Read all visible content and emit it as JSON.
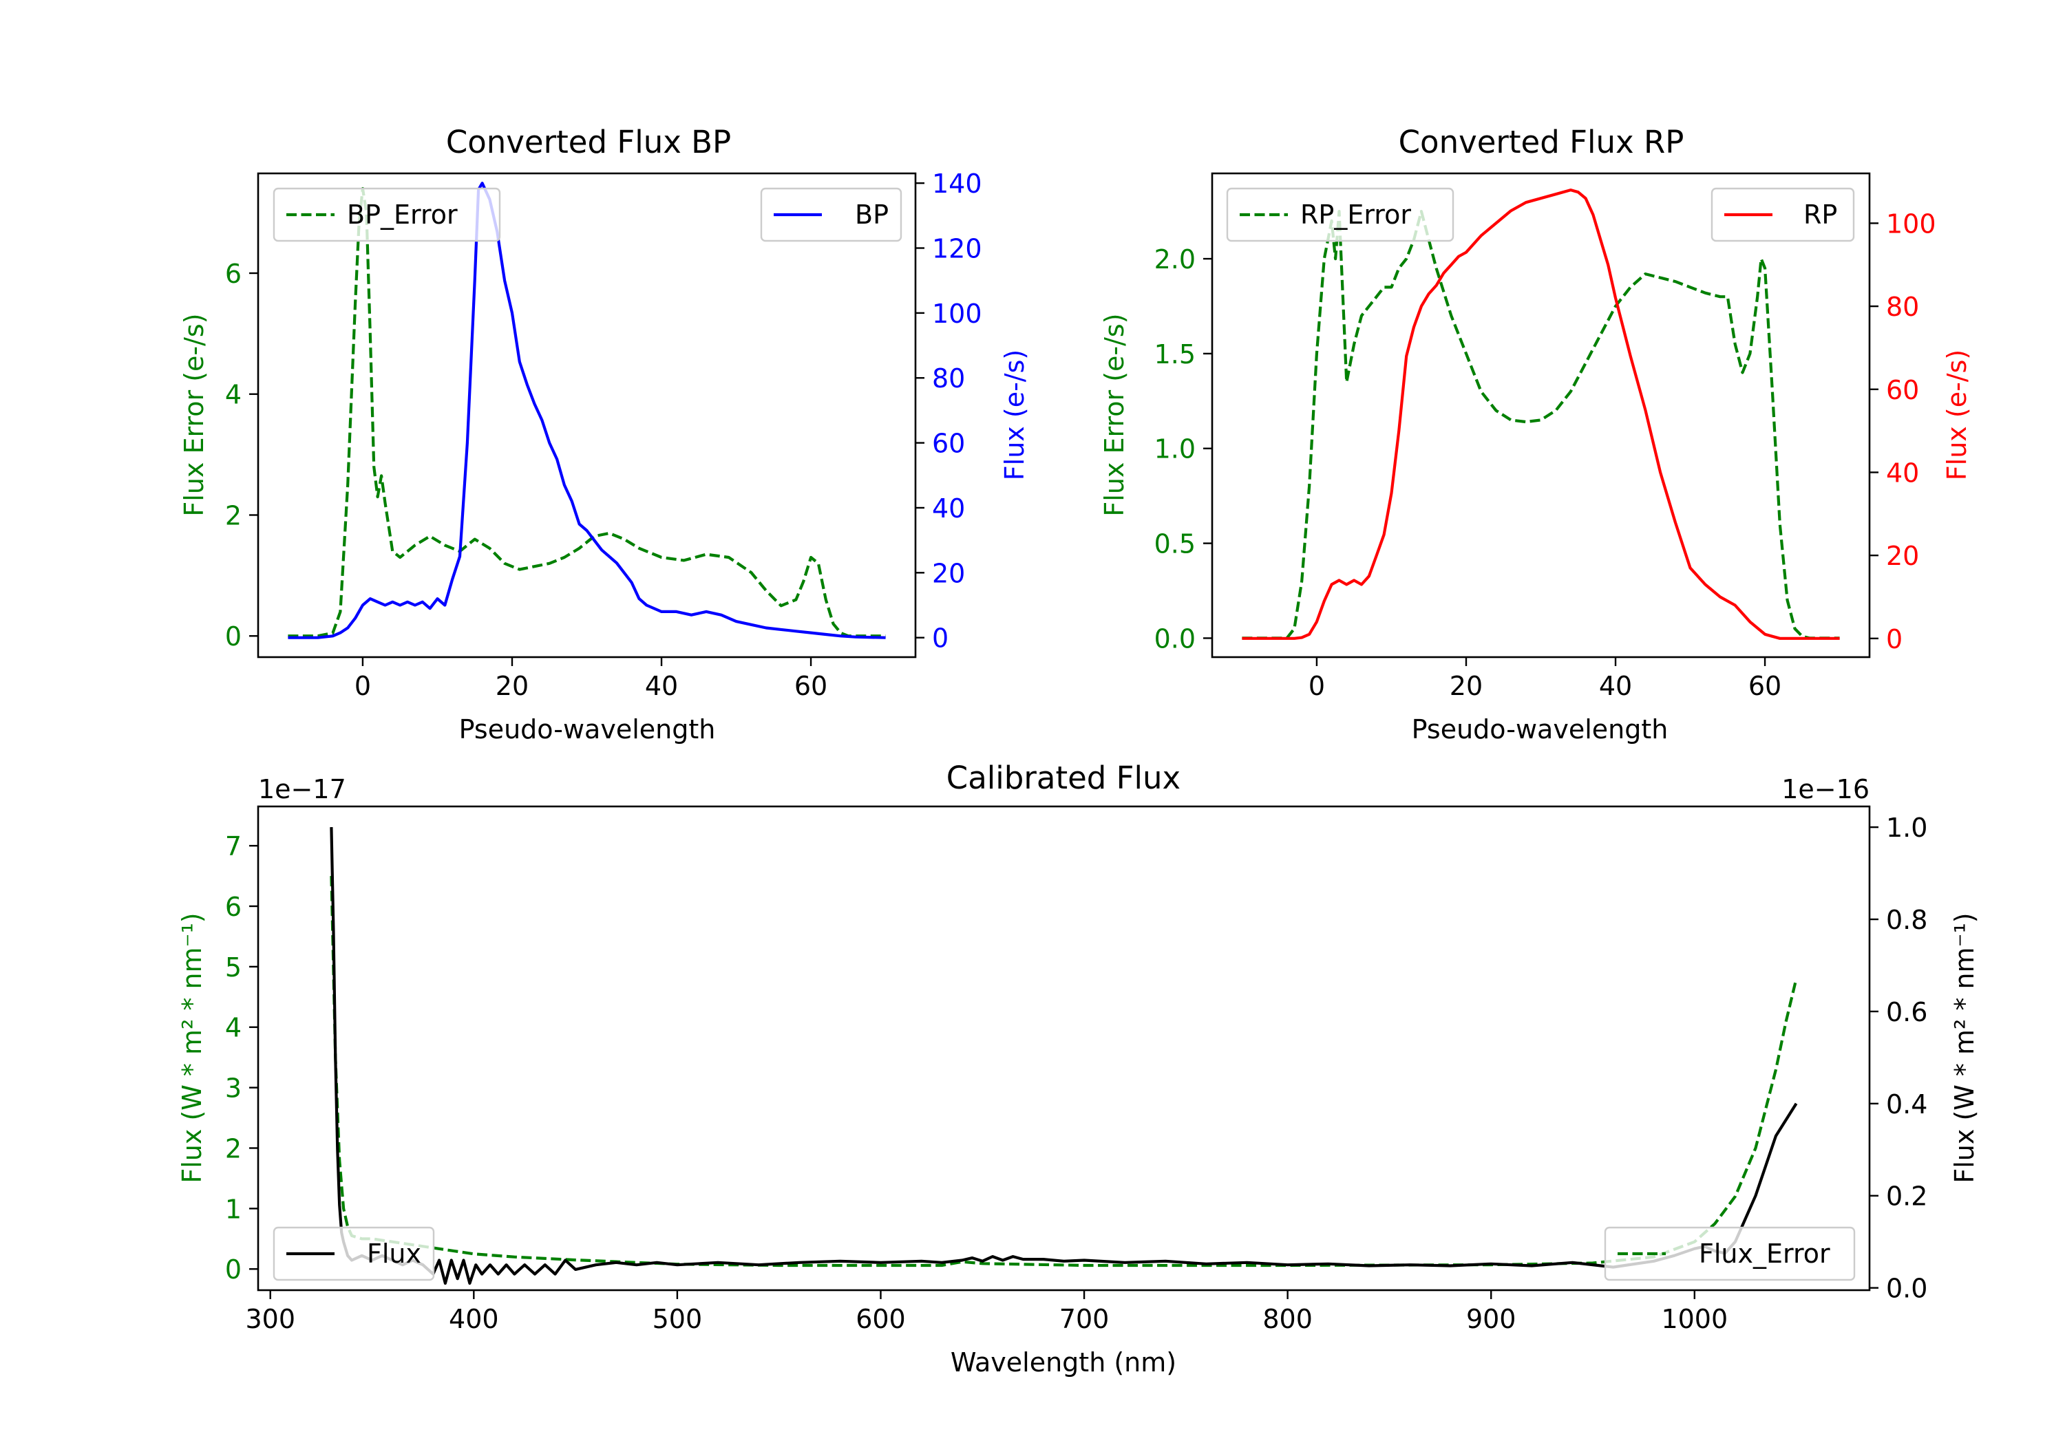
{
  "colors": {
    "green": "#008000",
    "blue": "#0000ff",
    "red": "#ff0000",
    "black": "#000000"
  },
  "chart_data": [
    {
      "id": "bp",
      "type": "line",
      "title": "Converted Flux BP",
      "xlabel": "Pseudo-wavelength",
      "ylabel_left": "Flux Error (e-/s)",
      "ylabel_right": "Flux (e-/s)",
      "xlim": [
        -14,
        74
      ],
      "ylim_left": [
        -0.35,
        7.65
      ],
      "ylim_right": [
        -6,
        143
      ],
      "xticks": [
        0,
        20,
        40,
        60
      ],
      "yticks_left": [
        0,
        2,
        4,
        6
      ],
      "yticks_right": [
        0,
        20,
        40,
        60,
        80,
        100,
        120,
        140
      ],
      "series": [
        {
          "name": "BP_Error",
          "axis": "left",
          "color": "#008000",
          "dash": true,
          "x": [
            -10,
            -8,
            -6,
            -4,
            -3,
            -2,
            -1,
            -0.5,
            0,
            0.5,
            1,
            1.5,
            2,
            2.5,
            3,
            4,
            5,
            7,
            9,
            11,
            13,
            15,
            17,
            19,
            21,
            23,
            25,
            27,
            29,
            31,
            33,
            35,
            37,
            40,
            43,
            46,
            49,
            52,
            54,
            56,
            58,
            59,
            60,
            61,
            62,
            63,
            64,
            65,
            66,
            68,
            70
          ],
          "values": [
            0,
            0,
            0,
            0.05,
            0.4,
            2.5,
            5.5,
            6.8,
            7.4,
            7,
            5,
            2.8,
            2.3,
            2.65,
            2.2,
            1.4,
            1.3,
            1.5,
            1.65,
            1.5,
            1.4,
            1.6,
            1.45,
            1.2,
            1.1,
            1.15,
            1.2,
            1.3,
            1.45,
            1.65,
            1.7,
            1.6,
            1.45,
            1.3,
            1.25,
            1.35,
            1.3,
            1.05,
            0.75,
            0.5,
            0.6,
            0.9,
            1.3,
            1.2,
            0.6,
            0.2,
            0.05,
            0,
            0,
            0,
            0
          ]
        },
        {
          "name": "BP",
          "axis": "right",
          "color": "#0000ff",
          "dash": false,
          "x": [
            -10,
            -6,
            -4,
            -3,
            -2,
            -1,
            0,
            1,
            2,
            3,
            4,
            5,
            6,
            7,
            8,
            9,
            10,
            11,
            12,
            13,
            14,
            15,
            15.5,
            16,
            17,
            18,
            19,
            20,
            21,
            22,
            23,
            24,
            25,
            26,
            27,
            28,
            29,
            30,
            32,
            34,
            36,
            37,
            38,
            40,
            42,
            44,
            46,
            48,
            50,
            52,
            54,
            56,
            58,
            60,
            62,
            64,
            66,
            70
          ],
          "values": [
            0,
            0,
            0.5,
            1.5,
            3,
            6,
            10,
            12,
            11,
            10,
            11,
            10,
            11,
            10,
            11,
            9,
            12,
            10,
            18,
            25,
            60,
            110,
            138,
            140,
            135,
            125,
            110,
            100,
            85,
            78,
            72,
            67,
            60,
            55,
            47,
            42,
            35,
            33,
            27,
            23,
            17,
            12,
            10,
            8,
            8,
            7,
            8,
            7,
            5,
            4,
            3,
            2.5,
            2,
            1.5,
            1,
            0.5,
            0.2,
            0
          ]
        }
      ],
      "legend": [
        {
          "name": "BP_Error",
          "position": "upper-left"
        },
        {
          "name": "BP",
          "position": "upper-right"
        }
      ]
    },
    {
      "id": "rp",
      "type": "line",
      "title": "Converted Flux RP",
      "xlabel": "Pseudo-wavelength",
      "ylabel_left": "Flux Error (e-/s)",
      "ylabel_right": "Flux (e-/s)",
      "xlim": [
        -14,
        74
      ],
      "ylim_left": [
        -0.1,
        2.45
      ],
      "ylim_right": [
        -4.5,
        112
      ],
      "xticks": [
        0,
        20,
        40,
        60
      ],
      "yticks_left": [
        0.0,
        0.5,
        1.0,
        1.5,
        2.0
      ],
      "yticks_right": [
        0,
        20,
        40,
        60,
        80,
        100
      ],
      "series": [
        {
          "name": "RP_Error",
          "axis": "left",
          "color": "#008000",
          "dash": true,
          "x": [
            -10,
            -6,
            -4,
            -3,
            -2,
            -1,
            0,
            1,
            2,
            2.5,
            3,
            3.5,
            4,
            5,
            6,
            7,
            8,
            9,
            10,
            11,
            12,
            13,
            14,
            15,
            16,
            18,
            20,
            22,
            24,
            26,
            28,
            30,
            32,
            34,
            36,
            38,
            40,
            42,
            44,
            46,
            48,
            50,
            52,
            54,
            55,
            56,
            57,
            58,
            59,
            59.5,
            60,
            61,
            62,
            63,
            64,
            65,
            66,
            70
          ],
          "values": [
            0,
            0,
            0,
            0.05,
            0.3,
            0.8,
            1.5,
            2.0,
            2.2,
            2.0,
            2.25,
            1.8,
            1.35,
            1.55,
            1.7,
            1.75,
            1.8,
            1.85,
            1.85,
            1.95,
            2.0,
            2.1,
            2.25,
            2.1,
            1.95,
            1.7,
            1.5,
            1.3,
            1.2,
            1.15,
            1.14,
            1.15,
            1.2,
            1.3,
            1.45,
            1.6,
            1.75,
            1.85,
            1.92,
            1.9,
            1.88,
            1.85,
            1.82,
            1.8,
            1.8,
            1.55,
            1.4,
            1.5,
            1.8,
            2.0,
            1.95,
            1.3,
            0.6,
            0.2,
            0.05,
            0.01,
            0,
            0
          ]
        },
        {
          "name": "RP",
          "axis": "right",
          "color": "#ff0000",
          "dash": false,
          "x": [
            -10,
            -3,
            -2,
            -1,
            0,
            1,
            2,
            3,
            4,
            5,
            6,
            7,
            8,
            9,
            10,
            11,
            12,
            13,
            14,
            15,
            16,
            17,
            18,
            19,
            20,
            22,
            24,
            26,
            28,
            30,
            32,
            34,
            35,
            36,
            37,
            38,
            39,
            40,
            41,
            42,
            44,
            46,
            48,
            50,
            52,
            54,
            56,
            58,
            60,
            61,
            62,
            64,
            66,
            70
          ],
          "values": [
            0,
            0,
            0.2,
            1,
            4,
            9,
            13,
            14,
            13,
            14,
            13,
            15,
            20,
            25,
            35,
            50,
            68,
            75,
            80,
            83,
            85,
            88,
            90,
            92,
            93,
            97,
            100,
            103,
            105,
            106,
            107,
            108,
            107.5,
            106,
            102,
            96,
            90,
            82,
            75,
            68,
            55,
            40,
            28,
            17,
            13,
            10,
            8,
            4,
            1,
            0.5,
            0,
            0,
            0,
            0
          ]
        }
      ],
      "legend": [
        {
          "name": "RP_Error",
          "position": "upper-left"
        },
        {
          "name": "RP",
          "position": "upper-right"
        }
      ]
    },
    {
      "id": "cal",
      "type": "line",
      "title": "Calibrated Flux",
      "xlabel": "Wavelength (nm)",
      "ylabel_left": "Flux (W * m² * nm⁻¹)",
      "ylabel_right": "Flux (W * m² * nm⁻¹)",
      "offset_left": "1e−17",
      "offset_right": "1e−16",
      "xlim": [
        294,
        1086
      ],
      "ylim_left": [
        -0.35,
        7.65
      ],
      "ylim_right": [
        -0.005,
        1.045
      ],
      "xticks": [
        300,
        400,
        500,
        600,
        700,
        800,
        900,
        1000
      ],
      "yticks_left": [
        0,
        1,
        2,
        3,
        4,
        5,
        6,
        7
      ],
      "yticks_right": [
        0.0,
        0.2,
        0.4,
        0.6,
        0.8,
        1.0
      ],
      "series": [
        {
          "name": "Flux_Error",
          "axis": "left",
          "color": "#008000",
          "dash": true,
          "x": [
            330,
            332,
            334,
            336,
            338,
            340,
            345,
            350,
            360,
            370,
            380,
            390,
            400,
            420,
            450,
            500,
            550,
            600,
            630,
            640,
            650,
            700,
            800,
            900,
            950,
            980,
            1000,
            1010,
            1020,
            1030,
            1040,
            1045,
            1050
          ],
          "values": [
            6.5,
            3.5,
            1.8,
            1.0,
            0.7,
            0.55,
            0.5,
            0.5,
            0.45,
            0.4,
            0.35,
            0.3,
            0.25,
            0.2,
            0.15,
            0.08,
            0.06,
            0.06,
            0.06,
            0.12,
            0.09,
            0.06,
            0.06,
            0.07,
            0.1,
            0.2,
            0.45,
            0.75,
            1.2,
            2.0,
            3.3,
            4.1,
            4.8
          ]
        },
        {
          "name": "Flux",
          "axis": "right",
          "color": "#000000",
          "dash": false,
          "x": [
            330,
            331,
            332,
            333,
            334,
            335,
            336,
            338,
            340,
            345,
            350,
            355,
            360,
            365,
            370,
            375,
            380,
            383,
            386,
            389,
            392,
            395,
            398,
            401,
            404,
            408,
            412,
            416,
            420,
            425,
            430,
            435,
            440,
            445,
            450,
            460,
            470,
            480,
            490,
            500,
            520,
            540,
            560,
            580,
            600,
            620,
            630,
            640,
            645,
            650,
            655,
            660,
            665,
            670,
            680,
            690,
            700,
            720,
            740,
            760,
            780,
            800,
            820,
            840,
            860,
            880,
            900,
            920,
            940,
            960,
            980,
            990,
            1000,
            1005,
            1010,
            1015,
            1020,
            1030,
            1040,
            1050
          ],
          "values": [
            1.0,
            0.78,
            0.5,
            0.3,
            0.18,
            0.12,
            0.1,
            0.07,
            0.06,
            0.07,
            0.06,
            0.07,
            0.06,
            0.05,
            0.06,
            0.05,
            0.03,
            0.06,
            0.01,
            0.06,
            0.02,
            0.06,
            0.01,
            0.05,
            0.03,
            0.05,
            0.03,
            0.05,
            0.03,
            0.05,
            0.03,
            0.05,
            0.03,
            0.06,
            0.04,
            0.05,
            0.055,
            0.05,
            0.055,
            0.05,
            0.055,
            0.05,
            0.055,
            0.058,
            0.055,
            0.058,
            0.055,
            0.06,
            0.065,
            0.058,
            0.068,
            0.06,
            0.068,
            0.062,
            0.062,
            0.058,
            0.06,
            0.055,
            0.058,
            0.052,
            0.055,
            0.05,
            0.052,
            0.048,
            0.05,
            0.048,
            0.052,
            0.048,
            0.055,
            0.045,
            0.058,
            0.07,
            0.085,
            0.09,
            0.08,
            0.075,
            0.1,
            0.2,
            0.33,
            0.4
          ]
        }
      ],
      "legend": [
        {
          "name": "Flux",
          "position": "lower-left"
        },
        {
          "name": "Flux_Error",
          "position": "lower-right"
        }
      ]
    }
  ]
}
